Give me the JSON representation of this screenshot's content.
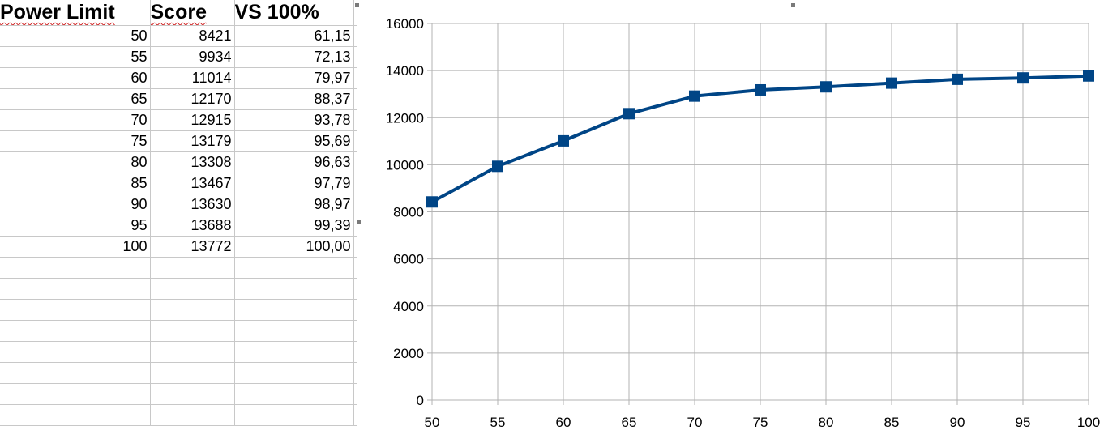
{
  "sheet": {
    "headers": [
      "Power Limit",
      "Score",
      "VS 100%"
    ],
    "rows": [
      [
        "50",
        "8421",
        "61,15"
      ],
      [
        "55",
        "9934",
        "72,13"
      ],
      [
        "60",
        "11014",
        "79,97"
      ],
      [
        "65",
        "12170",
        "88,37"
      ],
      [
        "70",
        "12915",
        "93,78"
      ],
      [
        "75",
        "13179",
        "95,69"
      ],
      [
        "80",
        "13308",
        "96,63"
      ],
      [
        "85",
        "13467",
        "97,79"
      ],
      [
        "90",
        "13630",
        "98,97"
      ],
      [
        "95",
        "13688",
        "99,39"
      ],
      [
        "100",
        "13772",
        "100,00"
      ]
    ],
    "empty_rows": 8
  },
  "colors": {
    "series": "#004586",
    "grid": "#b3b3b3",
    "cell_border": "#c8c8c8",
    "spell_underline": "#d02020"
  },
  "chart_data": {
    "type": "line",
    "x": [
      50,
      55,
      60,
      65,
      70,
      75,
      80,
      85,
      90,
      95,
      100
    ],
    "series": [
      {
        "values": [
          8421,
          9934,
          11014,
          12170,
          12915,
          13179,
          13308,
          13467,
          13630,
          13688,
          13772
        ]
      }
    ],
    "marker": "square",
    "title": "",
    "xlabel": "",
    "ylabel": "",
    "xlim": [
      50,
      100
    ],
    "ylim": [
      0,
      16000
    ],
    "xticks": [
      50,
      55,
      60,
      65,
      70,
      75,
      80,
      85,
      90,
      95,
      100
    ],
    "yticks": [
      0,
      2000,
      4000,
      6000,
      8000,
      10000,
      12000,
      14000,
      16000
    ],
    "grid": "horizontal and vertical",
    "legend": "none"
  }
}
